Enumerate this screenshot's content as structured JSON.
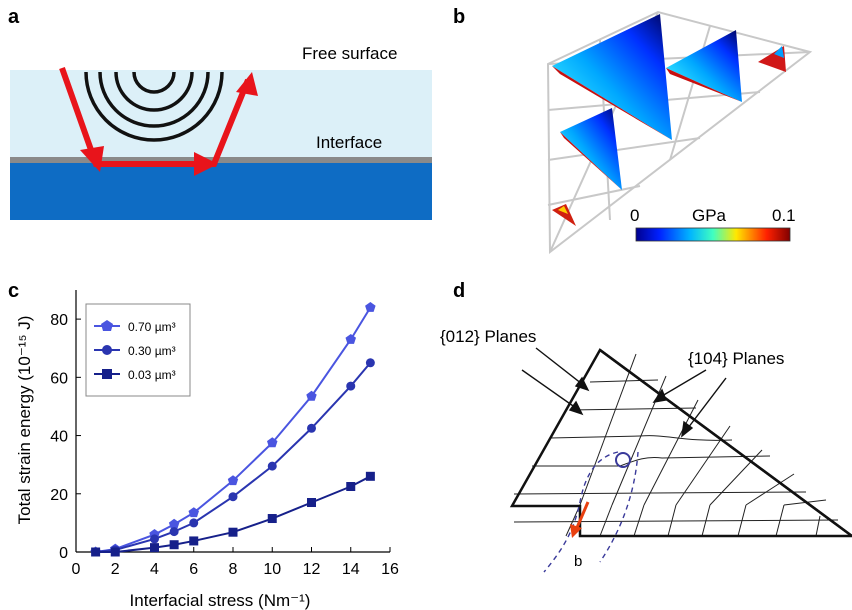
{
  "panels": {
    "a": {
      "label": "a",
      "free_surface": "Free surface",
      "interface": "Interface",
      "colors": {
        "film": "#dcf0f8",
        "substrate": "#0e6cc4",
        "interface_line": "#8a8a8a",
        "arrow": "#e8141b"
      }
    },
    "b": {
      "label": "b",
      "colorbar_min": "0",
      "colorbar_unit": "GPa",
      "colorbar_max": "0.1"
    },
    "c": {
      "label": "c",
      "chart_data": {
        "type": "line",
        "xlabel": "Interfacial stress (Nm⁻¹)",
        "ylabel": "Total strain energy (10⁻¹⁵ J)",
        "xlim": [
          0,
          16
        ],
        "ylim": [
          0,
          90
        ],
        "xticks": [
          0,
          2,
          4,
          6,
          8,
          10,
          12,
          14,
          16
        ],
        "yticks": [
          0,
          20,
          40,
          60,
          80
        ],
        "grid": false,
        "legend_position": "top-left",
        "series": [
          {
            "name": "0.70 µm³",
            "marker": "pentagon",
            "color": "#4a55e0",
            "x": [
              1,
              2,
              4,
              5,
              6,
              8,
              10,
              12,
              14,
              15
            ],
            "y": [
              0,
              1,
              6,
              9.5,
              13.5,
              24.5,
              37.5,
              53.5,
              73,
              84
            ]
          },
          {
            "name": "0.30 µm³",
            "marker": "circle",
            "color": "#2a35b0",
            "x": [
              1,
              2,
              4,
              5,
              6,
              8,
              10,
              12,
              14,
              15
            ],
            "y": [
              0,
              0.7,
              4.5,
              7,
              10,
              19,
              29.5,
              42.5,
              57,
              65
            ]
          },
          {
            "name": "0.03 µm³",
            "marker": "square",
            "color": "#16208a",
            "x": [
              1,
              2,
              4,
              5,
              6,
              8,
              10,
              12,
              14,
              15
            ],
            "y": [
              0,
              0,
              1.5,
              2.5,
              3.8,
              6.8,
              11.5,
              17,
              22.5,
              26
            ]
          }
        ]
      }
    },
    "d": {
      "label": "d",
      "planes_012": "{012} Planes",
      "planes_104": "{104} Planes",
      "burgers": "b"
    }
  }
}
